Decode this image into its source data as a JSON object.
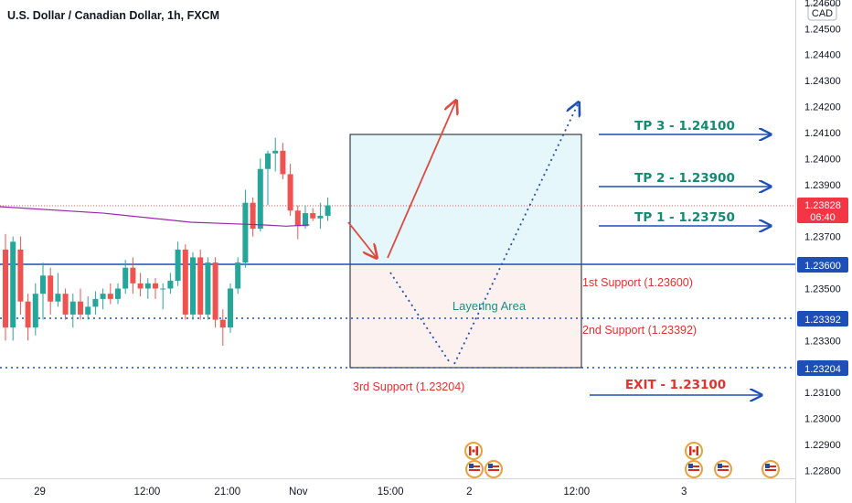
{
  "chart_data": {
    "type": "candlestick",
    "title": "U.S. Dollar / Canadian Dollar, 1h, FXCM",
    "currency": "CAD",
    "y_ticks": [
      "1.24600",
      "1.24500",
      "1.24400",
      "1.24300",
      "1.24200",
      "1.24100",
      "1.24000",
      "1.23900",
      "1.23700",
      "1.23500",
      "1.23300",
      "1.23100",
      "1.23000",
      "1.22900",
      "1.22800"
    ],
    "x_ticks": [
      {
        "label": "29",
        "pos": 0.05
      },
      {
        "label": "12:00",
        "pos": 0.185
      },
      {
        "label": "21:00",
        "pos": 0.286
      },
      {
        "label": "Nov",
        "pos": 0.375
      },
      {
        "label": "15:00",
        "pos": 0.491
      },
      {
        "label": "2",
        "pos": 0.59
      },
      {
        "label": "12:00",
        "pos": 0.725
      },
      {
        "label": "3",
        "pos": 0.86
      }
    ],
    "ylim": [
      1.2277,
      1.2461
    ],
    "candles": [
      [
        1.2365,
        1.2371,
        1.233,
        1.2335
      ],
      [
        1.2335,
        1.237,
        1.233,
        1.2368
      ],
      [
        1.2365,
        1.237,
        1.234,
        1.2345
      ],
      [
        1.2345,
        1.2348,
        1.233,
        1.2335
      ],
      [
        1.2335,
        1.2352,
        1.2332,
        1.2348
      ],
      [
        1.2348,
        1.236,
        1.2338,
        1.2355
      ],
      [
        1.2355,
        1.2358,
        1.234,
        1.2345
      ],
      [
        1.2345,
        1.2356,
        1.2343,
        1.2348
      ],
      [
        1.2348,
        1.235,
        1.2338,
        1.234
      ],
      [
        1.234,
        1.2348,
        1.2335,
        1.2345
      ],
      [
        1.2345,
        1.235,
        1.2338,
        1.234
      ],
      [
        1.234,
        1.2347,
        1.2338,
        1.2343
      ],
      [
        1.2343,
        1.2349,
        1.234,
        1.2346
      ],
      [
        1.2346,
        1.235,
        1.2342,
        1.2348
      ],
      [
        1.2348,
        1.2352,
        1.2344,
        1.2346
      ],
      [
        1.2346,
        1.2352,
        1.2344,
        1.235
      ],
      [
        1.235,
        1.2361,
        1.2348,
        1.2358
      ],
      [
        1.2358,
        1.2362,
        1.2348,
        1.2352
      ],
      [
        1.2352,
        1.2356,
        1.2347,
        1.235
      ],
      [
        1.235,
        1.2354,
        1.2346,
        1.2352
      ],
      [
        1.2352,
        1.2354,
        1.2346,
        1.235
      ],
      [
        1.235,
        1.2352,
        1.2342,
        1.235
      ],
      [
        1.235,
        1.2356,
        1.2348,
        1.2353
      ],
      [
        1.2353,
        1.2368,
        1.2351,
        1.2365
      ],
      [
        1.2365,
        1.2367,
        1.2338,
        1.234
      ],
      [
        1.234,
        1.2364,
        1.2338,
        1.2362
      ],
      [
        1.2362,
        1.2365,
        1.2338,
        1.234
      ],
      [
        1.234,
        1.2362,
        1.2338,
        1.236
      ],
      [
        1.236,
        1.2362,
        1.2335,
        1.2338
      ],
      [
        1.2338,
        1.2342,
        1.2328,
        1.2335
      ],
      [
        1.2335,
        1.2352,
        1.2333,
        1.235
      ],
      [
        1.235,
        1.2362,
        1.2348,
        1.236
      ],
      [
        1.236,
        1.2388,
        1.2358,
        1.2383
      ],
      [
        1.2383,
        1.2385,
        1.237,
        1.2373
      ],
      [
        1.2373,
        1.24,
        1.2372,
        1.2396
      ],
      [
        1.2396,
        1.2403,
        1.2382,
        1.2402
      ],
      [
        1.2402,
        1.2408,
        1.2395,
        1.2403
      ],
      [
        1.2403,
        1.2406,
        1.2392,
        1.2394
      ],
      [
        1.2394,
        1.2398,
        1.2378,
        1.238
      ],
      [
        1.238,
        1.2382,
        1.2369,
        1.2374
      ],
      [
        1.2374,
        1.2382,
        1.2373,
        1.2379
      ],
      [
        1.2379,
        1.2381,
        1.2376,
        1.2377
      ],
      [
        1.2377,
        1.2383,
        1.2373,
        1.2378
      ],
      [
        1.2378,
        1.2385,
        1.2376,
        1.2382
      ]
    ],
    "moving_average": [
      [
        0,
        1.23815
      ],
      [
        0.13,
        1.2379
      ],
      [
        0.24,
        1.23755
      ],
      [
        0.33,
        1.23745
      ],
      [
        0.36,
        1.2374
      ],
      [
        0.389,
        1.23745
      ]
    ],
    "box_y": {
      "top": 1.241,
      "mid": 1.236,
      "bottom": 1.23204
    },
    "levels": [
      {
        "price": 1.236,
        "label": "1.23600",
        "style": "solid"
      },
      {
        "price": 1.23392,
        "label": "1.23392",
        "style": "dotted"
      },
      {
        "price": 1.23204,
        "label": "1.23204",
        "style": "dotted"
      }
    ],
    "current_price": {
      "value": 1.23828,
      "label": "1.23828",
      "countdown": "06:40"
    },
    "targets": [
      {
        "label": "TP 3 - 1.24100",
        "price": 1.241
      },
      {
        "label": "TP 2 - 1.23900",
        "price": 1.239
      },
      {
        "label": "TP 1 - 1.23750",
        "price": 1.2375
      }
    ],
    "exit": {
      "label": "EXIT - 1.23100",
      "price": 1.231
    },
    "supports": [
      {
        "label": "1st Support (1.23600)",
        "price": 1.236
      },
      {
        "label": "2nd Support (1.23392)",
        "price": 1.23392
      },
      {
        "label": "3rd Support (1.23204)",
        "price": 1.23204
      }
    ],
    "layering_label": "Layering Area",
    "colors": {
      "up": "#26a69a",
      "down": "#ef5350",
      "ma": "#9c27b0",
      "level": "#1e4eb8",
      "arrow": "#1e4eb8",
      "red_arrow": "#e0493e",
      "tp": "#138a72",
      "exit": "#e0322e",
      "tag": "#1e4eb8",
      "price_tag": "#f23645"
    }
  }
}
